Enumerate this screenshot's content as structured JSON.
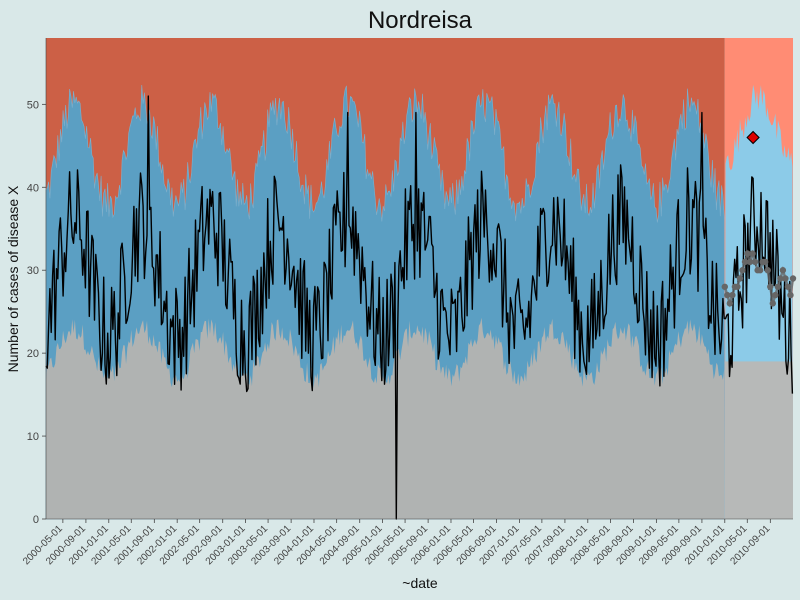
{
  "chart_data": {
    "type": "line",
    "title": "Nordreisa",
    "xlabel": "~date",
    "ylabel": "Number of cases of disease X",
    "ylim": [
      0,
      58
    ],
    "yticks": [
      0,
      10,
      20,
      30,
      40,
      50
    ],
    "xlim": [
      "2000-02-01",
      "2010-12-31"
    ],
    "xticks": [
      "2000-05-01",
      "2000-09-01",
      "2001-01-01",
      "2001-05-01",
      "2001-09-01",
      "2002-01-01",
      "2002-05-01",
      "2002-09-01",
      "2003-01-01",
      "2003-05-01",
      "2003-09-01",
      "2004-01-01",
      "2004-05-01",
      "2004-09-01",
      "2005-01-01",
      "2005-05-01",
      "2005-09-01",
      "2006-01-01",
      "2006-05-01",
      "2006-09-01",
      "2007-01-01",
      "2007-05-01",
      "2007-09-01",
      "2008-01-01",
      "2008-05-01",
      "2008-09-01",
      "2009-01-01",
      "2009-05-01",
      "2009-09-01",
      "2010-01-01",
      "2010-05-01",
      "2010-09-01"
    ],
    "baseline_end": "2010-01-01",
    "band_thresholds": {
      "lower": {
        "mean": 20,
        "amplitude": 3
      },
      "upper": {
        "mean": 44,
        "amplitude": 6
      },
      "seasonal_peak_month": 6
    },
    "prediction_band_thresholds": {
      "lower": 19,
      "upper": {
        "mean": 47,
        "amplitude": 4
      }
    },
    "series": [
      {
        "role": "observed",
        "color": "#000000",
        "mean": 29,
        "seasonal_amplitude": 7,
        "noise": 7,
        "min_point": {
          "date": "2005-03-15",
          "value": 0
        },
        "peak_points": [
          {
            "date": "2001-08-01",
            "value": 51
          },
          {
            "date": "2004-07-01",
            "value": 49
          },
          {
            "date": "2005-07-01",
            "value": 49
          },
          {
            "date": "2009-09-01",
            "value": 49
          }
        ]
      },
      {
        "role": "forecast",
        "color": "#666666",
        "start": "2010-01-01",
        "end": "2010-12-31",
        "values": [
          28,
          27,
          26,
          27,
          28,
          28,
          29,
          30,
          31,
          32,
          31,
          32,
          31,
          30,
          30,
          31,
          31,
          30,
          28,
          26,
          27,
          28,
          29,
          30,
          29,
          28,
          27,
          29
        ]
      }
    ],
    "markers": [
      {
        "date": "2010-06-01",
        "value": 46,
        "shape": "diamond",
        "color": "#dd0000"
      }
    ],
    "colors": {
      "background": "#d9e8e8",
      "zone_low": "#b0b3b2",
      "zone_mid": "#5b9fc3",
      "zone_mid_outline": "#7fb0cc",
      "zone_high": "#cc6046",
      "prediction_zone_low": "#b7b9b8",
      "prediction_zone_mid": "#8ccbe8",
      "prediction_zone_high": "#ff8c74"
    },
    "grid": false,
    "legend": "none"
  }
}
